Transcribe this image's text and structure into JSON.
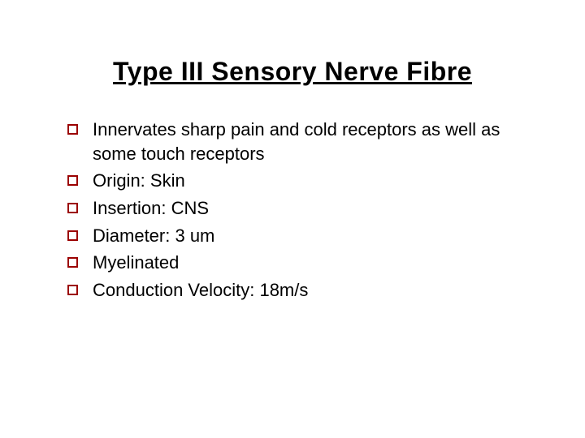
{
  "slide": {
    "title": "Type III Sensory Nerve Fibre",
    "title_color": "#000000",
    "title_fontsize": 32,
    "title_underline": true,
    "bullet_marker_border_color": "#9b0000",
    "bullet_marker_size": 13,
    "bullet_fontsize": 22,
    "bullet_text_color": "#000000",
    "background_color": "#ffffff",
    "bullets": [
      "Innervates sharp pain and cold receptors as well as some touch receptors",
      "Origin: Skin",
      "Insertion: CNS",
      "Diameter: 3 um",
      "Myelinated",
      "Conduction Velocity: 18m/s"
    ]
  }
}
